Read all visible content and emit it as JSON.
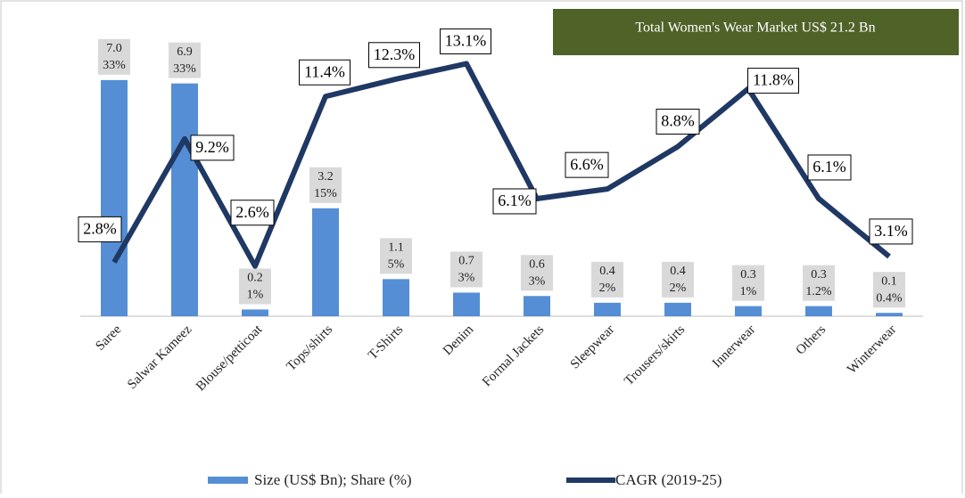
{
  "chart_data": {
    "type": "bar-line",
    "header": "Total Women's Wear Market US$ 21.2 Bn",
    "categories": [
      "Saree",
      "Salwar Kameez",
      "Blouse/petticoat",
      "Tops/shirts",
      "T-Shirts",
      "Denim",
      "Formal Jackets",
      "Sleepwear",
      "Trousers/skirts",
      "Innerwear",
      "Others",
      "Winterwear"
    ],
    "ylim": [
      0,
      8
    ],
    "y2lim": [
      0,
      14
    ],
    "series": [
      {
        "name": "Size (US$ Bn); Share (%)",
        "type": "bar",
        "color": "#558ed5",
        "values": [
          7.0,
          6.9,
          0.2,
          3.2,
          1.1,
          0.7,
          0.6,
          0.4,
          0.4,
          0.3,
          0.3,
          0.1
        ],
        "value_labels": [
          "7.0",
          "6.9",
          "0.2",
          "3.2",
          "1.1",
          "0.7",
          "0.6",
          "0.4",
          "0.4",
          "0.3",
          "0.3",
          "0.1"
        ],
        "shares": [
          33,
          33,
          1,
          15,
          5,
          3,
          3,
          2,
          2,
          1,
          1.2,
          0.4
        ],
        "share_labels": [
          "33%",
          "33%",
          "1%",
          "15%",
          "5%",
          "3%",
          "3%",
          "2%",
          "2%",
          "1%",
          "1.2%",
          "0.4%"
        ]
      },
      {
        "name": "CAGR (2019-25)",
        "type": "line",
        "axis": "y2",
        "color": "#1f3864",
        "values": [
          2.8,
          9.2,
          2.6,
          11.4,
          12.3,
          13.1,
          6.1,
          6.6,
          8.8,
          11.8,
          6.1,
          3.1
        ],
        "value_labels": [
          "2.8%",
          "9.2%",
          "2.6%",
          "11.4%",
          "12.3%",
          "13.1%",
          "6.1%",
          "6.6%",
          "8.8%",
          "11.8%",
          "6.1%",
          "3.1%"
        ]
      }
    ]
  }
}
